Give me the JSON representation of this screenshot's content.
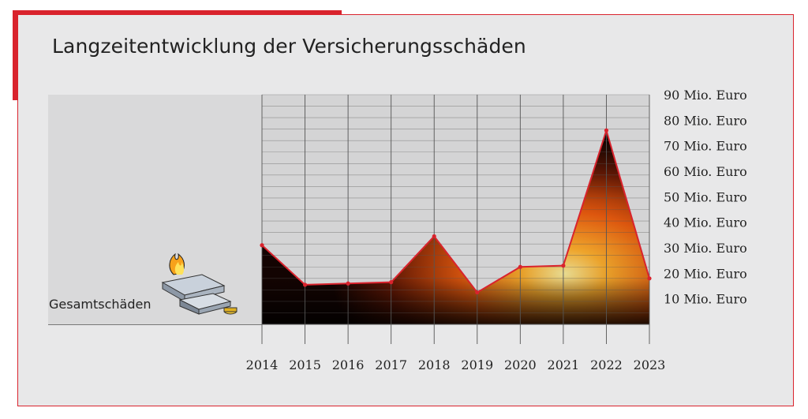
{
  "title": "Langzeitentwicklung der Versicherungsschäden",
  "colors": {
    "accent": "#d9232d",
    "line": "#d9232d",
    "grid": "#666666",
    "panel": "#d9d9da"
  },
  "illustration": {
    "icon": "burning-documents-icon"
  },
  "chart_data": {
    "type": "area",
    "title": "Langzeitentwicklung der Versicherungsschäden",
    "series_label": "Gesamtschäden",
    "x": [
      "2014",
      "2015",
      "2016",
      "2017",
      "2018",
      "2019",
      "2020",
      "2021",
      "2022",
      "2023"
    ],
    "series": [
      {
        "name": "Gesamtschäden",
        "values": [
          31,
          15.5,
          16,
          16.5,
          34.5,
          12.5,
          22.5,
          23,
          76,
          18
        ]
      }
    ],
    "y_ticks": [
      {
        "value": 90,
        "label": "90 Mio. Euro"
      },
      {
        "value": 80,
        "label": "80 Mio. Euro"
      },
      {
        "value": 70,
        "label": "70 Mio. Euro"
      },
      {
        "value": 60,
        "label": "60 Mio. Euro"
      },
      {
        "value": 50,
        "label": "50 Mio. Euro"
      },
      {
        "value": 40,
        "label": "40 Mio. Euro"
      },
      {
        "value": 30,
        "label": "30 Mio. Euro"
      },
      {
        "value": 20,
        "label": "20 Mio. Euro"
      },
      {
        "value": 10,
        "label": "10 Mio. Euro"
      }
    ],
    "ylim": [
      0,
      90
    ],
    "grid": true,
    "axis_side": "right"
  }
}
